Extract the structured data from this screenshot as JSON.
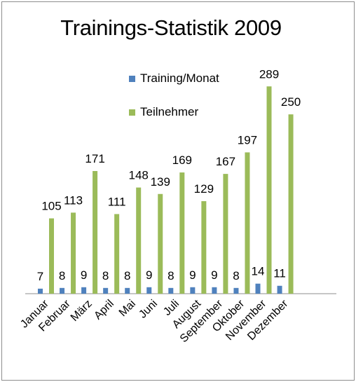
{
  "chart_data": {
    "type": "bar",
    "title": "Trainings-Statistik 2009",
    "categories": [
      "Januar",
      "Februar",
      "März",
      "April",
      "Mai",
      "Juni",
      "Juli",
      "August",
      "September",
      "Oktober",
      "November",
      "Dezember"
    ],
    "series": [
      {
        "name": "Training/Monat",
        "color": "#4f81bd",
        "values": [
          7,
          8,
          9,
          8,
          8,
          9,
          8,
          9,
          9,
          8,
          14,
          11
        ]
      },
      {
        "name": "Teilnehmer",
        "color": "#9bbb59",
        "values": [
          105,
          113,
          171,
          111,
          148,
          139,
          169,
          129,
          167,
          197,
          289,
          250
        ]
      }
    ],
    "ylim": [
      0,
      300
    ],
    "grid": false,
    "legend_position": "top-center"
  }
}
